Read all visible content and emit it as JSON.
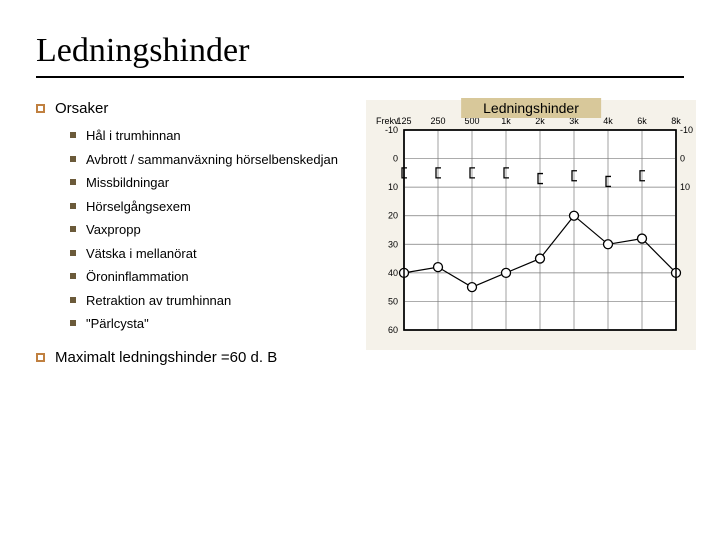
{
  "title": "Ledningshinder",
  "section1": {
    "label": "Orsaker"
  },
  "causes": [
    "Hål i trumhinnan",
    "Avbrott / sammanväxning hörselbenskedjan",
    "Missbildningar",
    "Hörselgångsexem",
    "Vaxpropp",
    "Vätska i mellanörat",
    "Öroninflammation",
    "Retraktion av trumhinnan",
    "\"Pärlcysta\""
  ],
  "section2": {
    "label": "Maximalt ledningshinder =60 d. B"
  },
  "chart": {
    "overlay_title": "Ledningshinder",
    "overlay_bg": "#d8c89a",
    "bg": "#f5f2ea",
    "grid_color": "#7a7a7a",
    "border_color": "#000000",
    "label_fontsize": 9,
    "x_header": "Frekv.",
    "x_ticks": [
      "125",
      "250",
      "500",
      "1k",
      "2k",
      "3k",
      "4k",
      "6k",
      "8k"
    ],
    "y_ticks": [
      -10,
      0,
      10,
      20,
      30,
      40,
      50,
      60
    ],
    "right_ticks": [
      -10,
      0,
      10
    ],
    "xlim": [
      0,
      8
    ],
    "ylim": [
      -10,
      60
    ],
    "series": [
      {
        "name": "bone",
        "marker": "bracket",
        "color": "#000000",
        "linewidth": 0,
        "points": [
          [
            0,
            5
          ],
          [
            1,
            5
          ],
          [
            2,
            5
          ],
          [
            3,
            5
          ],
          [
            4,
            7
          ],
          [
            5,
            6
          ],
          [
            6,
            8
          ],
          [
            7,
            6
          ]
        ]
      },
      {
        "name": "air",
        "marker": "circle",
        "color": "#000000",
        "linewidth": 1.2,
        "points": [
          [
            0,
            40
          ],
          [
            1,
            38
          ],
          [
            2,
            45
          ],
          [
            3,
            40
          ],
          [
            4,
            35
          ],
          [
            5,
            20
          ],
          [
            6,
            30
          ],
          [
            7,
            28
          ],
          [
            8,
            40
          ]
        ]
      }
    ]
  }
}
